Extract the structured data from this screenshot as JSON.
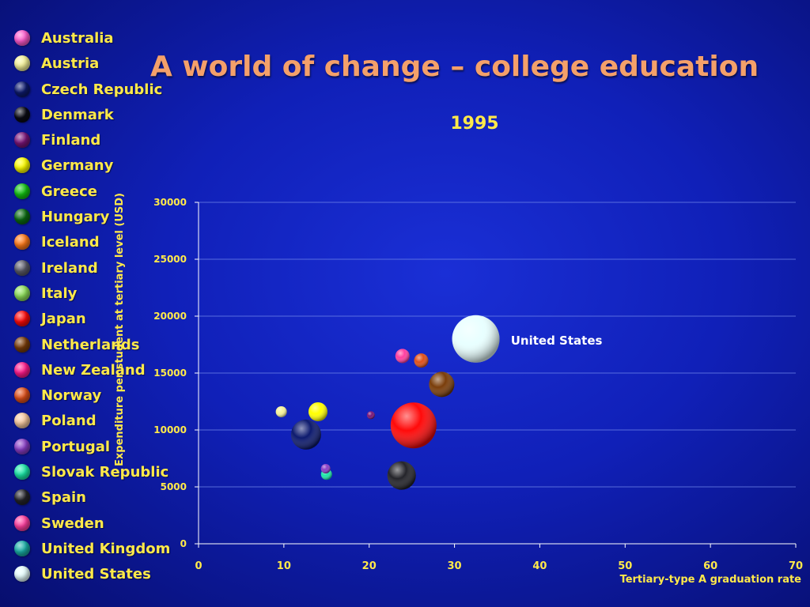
{
  "slide": {
    "title": "A world of change – college education",
    "year": "1995"
  },
  "legend": [
    {
      "label": "Australia",
      "color": "#ff5ccf"
    },
    {
      "label": "Austria",
      "color": "#f6f39a"
    },
    {
      "label": "Czech Republic",
      "color": "#0d1a6e"
    },
    {
      "label": "Denmark",
      "color": "#0a0a14"
    },
    {
      "label": "Finland",
      "color": "#7a1478"
    },
    {
      "label": "Germany",
      "color": "#ffff00"
    },
    {
      "label": "Greece",
      "color": "#12c212"
    },
    {
      "label": "Hungary",
      "color": "#0b6b12"
    },
    {
      "label": "Iceland",
      "color": "#ff7a1a"
    },
    {
      "label": "Ireland",
      "color": "#5c5c6a"
    },
    {
      "label": "Italy",
      "color": "#8ee05a"
    },
    {
      "label": "Japan",
      "color": "#ff0a0a"
    },
    {
      "label": "Netherlands",
      "color": "#7a3d0a"
    },
    {
      "label": "New Zealand",
      "color": "#ff1a8c"
    },
    {
      "label": "Norway",
      "color": "#e0501a"
    },
    {
      "label": "Poland",
      "color": "#f8c9a0"
    },
    {
      "label": "Portugal",
      "color": "#8a3ec8"
    },
    {
      "label": "Slovak Republic",
      "color": "#1ae8a8"
    },
    {
      "label": "Spain",
      "color": "#24242a"
    },
    {
      "label": "Sweden",
      "color": "#ff3fa0"
    },
    {
      "label": "United Kingdom",
      "color": "#1ab0a8"
    },
    {
      "label": "United States",
      "color": "#e8ffff"
    }
  ],
  "chart_data": {
    "type": "scatter",
    "title": "1995",
    "xlabel": "Tertiary-type A graduation rate",
    "ylabel": "Expenditure per student at tertiary level (USD)",
    "xlim": [
      0,
      70
    ],
    "ylim": [
      0,
      30000
    ],
    "xticks": [
      0,
      10,
      20,
      30,
      40,
      50,
      60,
      70
    ],
    "yticks": [
      0,
      5000,
      10000,
      15000,
      20000,
      25000,
      30000
    ],
    "grid": "horizontal",
    "annotations": [
      {
        "text": "United States",
        "x": 36.6,
        "y": 17900
      }
    ],
    "points": [
      {
        "name": "United States",
        "x": 32.5,
        "y": 18000,
        "size": 30,
        "color": "#e8ffff"
      },
      {
        "name": "Japan",
        "x": 25.2,
        "y": 10400,
        "size": 29,
        "color": "#ff0a0a"
      },
      {
        "name": "Czech Republic",
        "x": 12.6,
        "y": 9600,
        "size": 19,
        "color": "#0d1a6e"
      },
      {
        "name": "Spain",
        "x": 23.8,
        "y": 6000,
        "size": 18,
        "color": "#24242a"
      },
      {
        "name": "Netherlands",
        "x": 28.5,
        "y": 14000,
        "size": 16,
        "color": "#7a3d0a"
      },
      {
        "name": "Germany",
        "x": 14.0,
        "y": 11600,
        "size": 12,
        "color": "#ffff00"
      },
      {
        "name": "Sweden",
        "x": 23.9,
        "y": 16500,
        "size": 9,
        "color": "#ff3fa0"
      },
      {
        "name": "Norway",
        "x": 26.1,
        "y": 16100,
        "size": 9,
        "color": "#e0501a"
      },
      {
        "name": "Austria",
        "x": 9.7,
        "y": 11600,
        "size": 7,
        "color": "#f6f39a"
      },
      {
        "name": "Portugal",
        "x": 14.9,
        "y": 6600,
        "size": 6,
        "color": "#8a3ec8"
      },
      {
        "name": "Slovak Republic",
        "x": 15.0,
        "y": 6100,
        "size": 7,
        "color": "#1ae8a8"
      },
      {
        "name": "Finland",
        "x": 20.2,
        "y": 11300,
        "size": 5,
        "color": "#7a1478"
      }
    ]
  }
}
